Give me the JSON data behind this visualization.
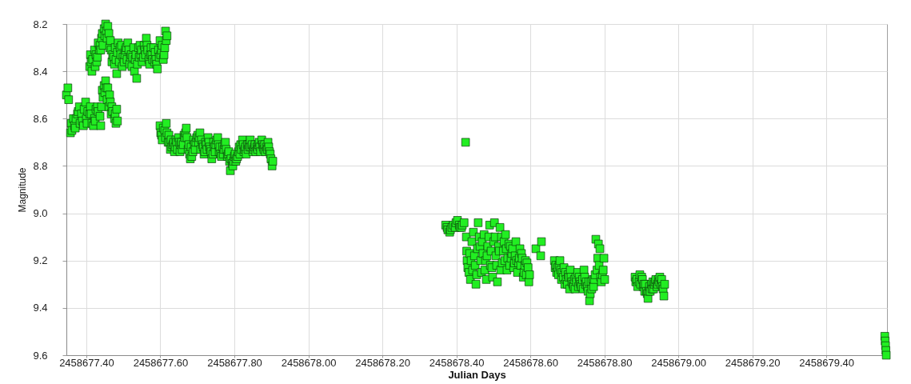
{
  "chart_data": {
    "type": "scatter",
    "xlabel": "Julian Days",
    "ylabel": "Magnitude",
    "color": "#22ee22",
    "marker": "square",
    "grid": true,
    "xlim": [
      2458677.346,
      2458679.564
    ],
    "ylim": [
      9.6,
      8.2
    ],
    "xticks": [
      {
        "value": 2458677.4,
        "label": "2458677.40"
      },
      {
        "value": 2458677.6,
        "label": "2458677.60"
      },
      {
        "value": 2458677.8,
        "label": "2458677.80"
      },
      {
        "value": 2458678,
        "label": "2458678.00"
      },
      {
        "value": 2458678.2,
        "label": "2458678.20"
      },
      {
        "value": 2458678.4,
        "label": "2458678.40"
      },
      {
        "value": 2458678.6,
        "label": "2458678.60"
      },
      {
        "value": 2458678.8,
        "label": "2458678.80"
      },
      {
        "value": 2458679,
        "label": "2458679.00"
      },
      {
        "value": 2458679.2,
        "label": "2458679.20"
      },
      {
        "value": 2458679.4,
        "label": "2458679.40"
      }
    ],
    "yticks": [
      8.2,
      8.4,
      8.6,
      8.8,
      {
        "value": 9,
        "label": "9.0"
      },
      9.2,
      9.4,
      9.6
    ],
    "x": [
      2458677.346,
      2458677.35,
      2458677.352,
      2458677.357,
      2458677.359,
      2458677.361,
      2458677.365,
      2458677.368,
      2458677.37,
      2458677.372,
      2458677.376,
      2458677.378,
      2458677.381,
      2458677.383,
      2458677.387,
      2458677.389,
      2458677.392,
      2458677.394,
      2458677.398,
      2458677.4,
      2458677.402,
      2458677.404,
      2458677.409,
      2458677.411,
      2458677.413,
      2458677.415,
      2458677.419,
      2458677.422,
      2458677.424,
      2458677.426,
      2458677.43,
      2458677.432,
      2458677.437,
      2458677.439,
      2458677.441,
      2458677.443,
      2458677.445,
      2458677.448,
      2458677.45,
      2458677.452,
      2458677.454,
      2458677.456,
      2458677.458,
      2458677.461,
      2458677.463,
      2458677.465,
      2458677.467,
      2458677.469,
      2458677.471,
      2458677.476,
      2458677.478,
      2458677.48,
      2458677.482,
      2458677.484,
      2458677.409,
      2458677.411,
      2458677.413,
      2458677.415,
      2458677.417,
      2458677.422,
      2458677.424,
      2458677.426,
      2458677.428,
      2458677.43,
      2458677.432,
      2458677.435,
      2458677.437,
      2458677.439,
      2458677.441,
      2458677.443,
      2458677.445,
      2458677.448,
      2458677.45,
      2458677.452,
      2458677.454,
      2458677.456,
      2458677.458,
      2458677.461,
      2458677.463,
      2458677.465,
      2458677.467,
      2458677.469,
      2458677.471,
      2458677.474,
      2458677.476,
      2458677.478,
      2458677.48,
      2458677.482,
      2458677.484,
      2458677.486,
      2458677.489,
      2458677.491,
      2458677.493,
      2458677.495,
      2458677.497,
      2458677.499,
      2458677.502,
      2458677.504,
      2458677.506,
      2458677.508,
      2458677.51,
      2458677.512,
      2458677.515,
      2458677.517,
      2458677.519,
      2458677.521,
      2458677.523,
      2458677.525,
      2458677.528,
      2458677.53,
      2458677.532,
      2458677.534,
      2458677.536,
      2458677.538,
      2458677.541,
      2458677.543,
      2458677.545,
      2458677.547,
      2458677.549,
      2458677.551,
      2458677.554,
      2458677.556,
      2458677.558,
      2458677.56,
      2458677.562,
      2458677.564,
      2458677.566,
      2458677.569,
      2458677.571,
      2458677.573,
      2458677.575,
      2458677.577,
      2458677.579,
      2458677.582,
      2458677.584,
      2458677.586,
      2458677.588,
      2458677.59,
      2458677.592,
      2458677.595,
      2458677.597,
      2458677.599,
      2458677.601,
      2458677.603,
      2458677.605,
      2458677.608,
      2458677.61,
      2458677.612,
      2458677.614,
      2458677.616,
      2458677.618,
      2458677.599,
      2458677.601,
      2458677.603,
      2458677.605,
      2458677.608,
      2458677.612,
      2458677.614,
      2458677.616,
      2458677.618,
      2458677.621,
      2458677.623,
      2458677.625,
      2458677.627,
      2458677.629,
      2458677.631,
      2458677.634,
      2458677.636,
      2458677.638,
      2458677.64,
      2458677.642,
      2458677.644,
      2458677.646,
      2458677.649,
      2458677.651,
      2458677.653,
      2458677.655,
      2458677.657,
      2458677.659,
      2458677.662,
      2458677.664,
      2458677.666,
      2458677.668,
      2458677.67,
      2458677.672,
      2458677.675,
      2458677.677,
      2458677.679,
      2458677.681,
      2458677.683,
      2458677.685,
      2458677.688,
      2458677.69,
      2458677.692,
      2458677.694,
      2458677.696,
      2458677.698,
      2458677.701,
      2458677.703,
      2458677.705,
      2458677.707,
      2458677.709,
      2458677.711,
      2458677.714,
      2458677.716,
      2458677.718,
      2458677.72,
      2458677.722,
      2458677.724,
      2458677.726,
      2458677.729,
      2458677.731,
      2458677.733,
      2458677.735,
      2458677.737,
      2458677.739,
      2458677.742,
      2458677.744,
      2458677.746,
      2458677.748,
      2458677.75,
      2458677.752,
      2458677.755,
      2458677.757,
      2458677.759,
      2458677.761,
      2458677.763,
      2458677.765,
      2458677.768,
      2458677.77,
      2458677.772,
      2458677.774,
      2458677.776,
      2458677.778,
      2458677.781,
      2458677.783,
      2458677.785,
      2458677.787,
      2458677.789,
      2458677.791,
      2458677.794,
      2458677.796,
      2458677.798,
      2458677.8,
      2458677.802,
      2458677.804,
      2458677.806,
      2458677.809,
      2458677.811,
      2458677.813,
      2458677.815,
      2458677.817,
      2458677.819,
      2458677.822,
      2458677.824,
      2458677.826,
      2458677.828,
      2458677.83,
      2458677.832,
      2458677.835,
      2458677.837,
      2458677.839,
      2458677.841,
      2458677.843,
      2458677.845,
      2458677.848,
      2458677.85,
      2458677.852,
      2458677.854,
      2458677.856,
      2458677.858,
      2458677.861,
      2458677.863,
      2458677.865,
      2458677.867,
      2458677.869,
      2458677.871,
      2458677.874,
      2458677.876,
      2458677.878,
      2458677.88,
      2458677.882,
      2458677.884,
      2458677.887,
      2458677.889,
      2458677.891,
      2458677.893,
      2458677.895,
      2458677.897,
      2458677.899,
      2458677.902,
      2458677.904,
      2458678.371,
      2458678.375,
      2458678.377,
      2458678.382,
      2458678.384,
      2458678.388,
      2458678.392,
      2458678.397,
      2458678.399,
      2458678.403,
      2458678.408,
      2458678.41,
      2458678.414,
      2458678.416,
      2458678.421,
      2458678.425,
      2458678.427,
      2458678.428,
      2458678.429,
      2458678.431,
      2458678.434,
      2458678.436,
      2458678.438,
      2458678.44,
      2458678.442,
      2458678.444,
      2458678.446,
      2458678.449,
      2458678.451,
      2458678.453,
      2458678.455,
      2458678.457,
      2458678.459,
      2458678.462,
      2458678.464,
      2458678.466,
      2458678.468,
      2458678.47,
      2458678.472,
      2458678.475,
      2458678.477,
      2458678.479,
      2458678.481,
      2458678.483,
      2458678.485,
      2458678.488,
      2458678.49,
      2458678.492,
      2458678.494,
      2458678.496,
      2458678.498,
      2458678.501,
      2458678.503,
      2458678.505,
      2458678.507,
      2458678.509,
      2458678.511,
      2458678.514,
      2458678.516,
      2458678.518,
      2458678.52,
      2458678.522,
      2458678.524,
      2458678.527,
      2458678.529,
      2458678.531,
      2458678.533,
      2458678.535,
      2458678.537,
      2458678.539,
      2458678.542,
      2458678.544,
      2458678.546,
      2458678.548,
      2458678.55,
      2458678.552,
      2458678.555,
      2458678.557,
      2458678.559,
      2458678.561,
      2458678.563,
      2458678.565,
      2458678.568,
      2458678.57,
      2458678.572,
      2458678.574,
      2458678.576,
      2458678.578,
      2458678.581,
      2458678.583,
      2458678.585,
      2458678.587,
      2458678.589,
      2458678.591,
      2458678.594,
      2458678.596,
      2458678.598,
      2458678.615,
      2458678.628,
      2458678.63,
      2458678.665,
      2458678.667,
      2458678.669,
      2458678.671,
      2458678.674,
      2458678.676,
      2458678.678,
      2458678.68,
      2458678.682,
      2458678.684,
      2458678.686,
      2458678.689,
      2458678.691,
      2458678.693,
      2458678.695,
      2458678.697,
      2458678.7,
      2458678.702,
      2458678.704,
      2458678.706,
      2458678.708,
      2458678.71,
      2458678.712,
      2458678.715,
      2458678.717,
      2458678.719,
      2458678.721,
      2458678.723,
      2458678.725,
      2458678.728,
      2458678.73,
      2458678.732,
      2458678.734,
      2458678.736,
      2458678.738,
      2458678.741,
      2458678.743,
      2458678.745,
      2458678.747,
      2458678.749,
      2458678.751,
      2458678.754,
      2458678.756,
      2458678.758,
      2458678.76,
      2458678.762,
      2458678.764,
      2458678.766,
      2458678.769,
      2458678.771,
      2458678.773,
      2458678.775,
      2458678.777,
      2458678.78,
      2458678.782,
      2458678.784,
      2458678.786,
      2458678.788,
      2458678.79,
      2458678.792,
      2458678.795,
      2458678.797,
      2458678.799,
      2458678.801,
      2458678.883,
      2458678.885,
      2458678.888,
      2458678.89,
      2458678.894,
      2458678.896,
      2458678.898,
      2458678.901,
      2458678.903,
      2458678.905,
      2458678.907,
      2458678.909,
      2458678.911,
      2458678.914,
      2458678.916,
      2458678.918,
      2458678.92,
      2458678.922,
      2458678.924,
      2458678.927,
      2458678.929,
      2458678.931,
      2458678.933,
      2458678.935,
      2458678.937,
      2458678.939,
      2458678.942,
      2458678.944,
      2458678.946,
      2458678.948,
      2458678.95,
      2458678.953,
      2458678.955,
      2458678.957,
      2458678.959,
      2458678.961,
      2458678.963,
      2458679.558,
      2458679.559,
      2458679.56,
      2458679.561,
      2458679.562
    ],
    "values": [
      8.5,
      8.47,
      8.52,
      8.66,
      8.62,
      8.65,
      8.6,
      8.63,
      8.64,
      8.6,
      8.58,
      8.57,
      8.55,
      8.62,
      8.58,
      8.61,
      8.63,
      8.56,
      8.53,
      8.6,
      8.62,
      8.57,
      8.58,
      8.55,
      8.58,
      8.62,
      8.63,
      8.6,
      8.61,
      8.56,
      8.55,
      8.57,
      8.59,
      8.63,
      8.55,
      8.48,
      8.51,
      8.46,
      8.49,
      8.44,
      8.47,
      8.52,
      8.47,
      8.55,
      8.5,
      8.53,
      8.58,
      8.55,
      8.57,
      8.6,
      8.58,
      8.62,
      8.56,
      8.61,
      8.38,
      8.33,
      8.36,
      8.4,
      8.35,
      8.31,
      8.38,
      8.33,
      8.36,
      8.34,
      8.28,
      8.31,
      8.29,
      8.31,
      8.26,
      8.24,
      8.29,
      8.22,
      8.25,
      8.2,
      8.23,
      8.26,
      8.21,
      8.24,
      8.3,
      8.27,
      8.31,
      8.36,
      8.33,
      8.34,
      8.37,
      8.3,
      8.35,
      8.41,
      8.32,
      8.28,
      8.36,
      8.3,
      8.33,
      8.29,
      8.38,
      8.34,
      8.36,
      8.33,
      8.31,
      8.3,
      8.35,
      8.28,
      8.31,
      8.37,
      8.34,
      8.33,
      8.38,
      8.34,
      8.3,
      8.4,
      8.35,
      8.33,
      8.43,
      8.37,
      8.3,
      8.34,
      8.29,
      8.33,
      8.31,
      8.36,
      8.34,
      8.29,
      8.31,
      8.33,
      8.26,
      8.29,
      8.31,
      8.35,
      8.37,
      8.33,
      8.3,
      8.33,
      8.35,
      8.3,
      8.36,
      8.32,
      8.35,
      8.37,
      8.39,
      8.31,
      8.34,
      8.27,
      8.33,
      8.31,
      8.29,
      8.35,
      8.33,
      8.3,
      8.23,
      8.27,
      8.25,
      8.63,
      8.66,
      8.67,
      8.69,
      8.64,
      8.65,
      8.68,
      8.62,
      8.66,
      8.7,
      8.67,
      8.7,
      8.73,
      8.69,
      8.72,
      8.71,
      8.7,
      8.74,
      8.72,
      8.69,
      8.7,
      8.73,
      8.68,
      8.7,
      8.74,
      8.71,
      8.7,
      8.73,
      8.71,
      8.67,
      8.68,
      8.66,
      8.64,
      8.68,
      8.73,
      8.71,
      8.75,
      8.77,
      8.72,
      8.76,
      8.74,
      8.69,
      8.71,
      8.73,
      8.7,
      8.68,
      8.67,
      8.7,
      8.68,
      8.66,
      8.73,
      8.69,
      8.71,
      8.72,
      8.75,
      8.74,
      8.7,
      8.71,
      8.73,
      8.68,
      8.7,
      8.72,
      8.73,
      8.74,
      8.77,
      8.75,
      8.7,
      8.72,
      8.74,
      8.71,
      8.69,
      8.68,
      8.71,
      8.74,
      8.72,
      8.75,
      8.76,
      8.72,
      8.75,
      8.73,
      8.71,
      8.7,
      8.73,
      8.76,
      8.75,
      8.74,
      8.78,
      8.82,
      8.77,
      8.79,
      8.8,
      8.78,
      8.76,
      8.75,
      8.78,
      8.77,
      8.76,
      8.74,
      8.72,
      8.75,
      8.71,
      8.73,
      8.69,
      8.71,
      8.74,
      8.73,
      8.72,
      8.75,
      8.71,
      8.73,
      8.71,
      8.72,
      8.69,
      8.72,
      8.71,
      8.74,
      8.73,
      8.72,
      8.71,
      8.74,
      8.72,
      8.73,
      8.71,
      8.7,
      8.72,
      8.74,
      8.69,
      8.71,
      8.72,
      8.73,
      8.71,
      8.74,
      8.72,
      8.73,
      8.7,
      8.72,
      8.74,
      8.75,
      8.77,
      8.8,
      8.78,
      9.05,
      9.06,
      9.07,
      9.08,
      9.07,
      9.06,
      9.05,
      9.06,
      9.04,
      9.03,
      9.05,
      9.06,
      9.06,
      9.05,
      9.04,
      8.7,
      9.1,
      9.16,
      9.2,
      9.23,
      9.25,
      9.17,
      9.28,
      9.2,
      9.12,
      9.24,
      9.08,
      9.18,
      9.22,
      9.3,
      9.26,
      9.15,
      9.04,
      9.1,
      9.14,
      9.2,
      9.25,
      9.12,
      9.17,
      9.09,
      9.24,
      9.2,
      9.28,
      9.18,
      9.14,
      9.1,
      9.05,
      9.22,
      9.16,
      9.23,
      9.27,
      9.12,
      9.04,
      9.1,
      9.18,
      9.22,
      9.29,
      9.14,
      9.16,
      9.06,
      9.24,
      9.1,
      9.21,
      9.16,
      9.12,
      9.2,
      9.09,
      9.15,
      9.24,
      9.19,
      9.13,
      9.22,
      9.14,
      9.19,
      9.17,
      9.15,
      9.23,
      9.21,
      9.18,
      9.12,
      9.2,
      9.25,
      9.21,
      9.19,
      9.15,
      9.22,
      9.17,
      9.19,
      9.27,
      9.25,
      9.22,
      9.2,
      9.26,
      9.21,
      9.23,
      9.29,
      9.26,
      9.15,
      9.18,
      9.12,
      9.2,
      9.23,
      9.22,
      9.25,
      9.23,
      9.26,
      9.22,
      9.2,
      9.24,
      9.28,
      9.25,
      9.27,
      9.23,
      9.3,
      9.25,
      9.28,
      9.3,
      9.26,
      9.27,
      9.32,
      9.24,
      9.27,
      9.29,
      9.3,
      9.31,
      9.28,
      9.32,
      9.27,
      9.29,
      9.25,
      9.31,
      9.27,
      9.29,
      9.3,
      9.31,
      9.28,
      9.32,
      9.24,
      9.27,
      9.3,
      9.29,
      9.31,
      9.33,
      9.29,
      9.37,
      9.34,
      9.29,
      9.32,
      9.28,
      9.31,
      9.28,
      9.26,
      9.11,
      9.24,
      9.19,
      9.13,
      9.22,
      9.15,
      9.27,
      9.29,
      9.26,
      9.24,
      9.19,
      9.28,
      9.27,
      9.29,
      9.28,
      9.31,
      9.29,
      9.26,
      9.3,
      9.27,
      9.28,
      9.31,
      9.3,
      9.33,
      9.3,
      9.33,
      9.34,
      9.36,
      9.33,
      9.31,
      9.33,
      9.3,
      9.32,
      9.29,
      9.32,
      9.3,
      9.29,
      9.28,
      9.31,
      9.3,
      9.28,
      9.29,
      9.27,
      9.3,
      9.28,
      9.31,
      9.32,
      9.35,
      9.3,
      9.52,
      9.54,
      9.56,
      9.58,
      9.6
    ]
  }
}
